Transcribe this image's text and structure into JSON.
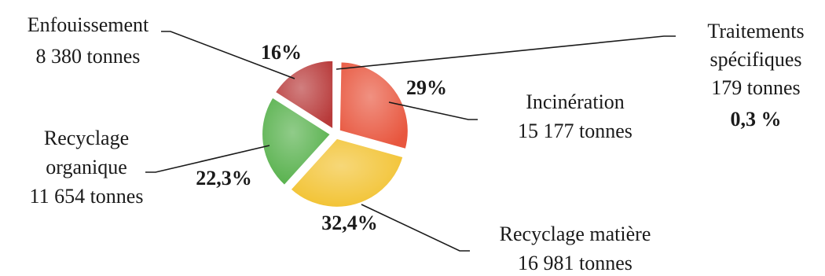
{
  "chart_data": {
    "type": "pie",
    "title": "",
    "slices": [
      {
        "label": "Traitements spécifiques",
        "value_text": "179 tonnes",
        "tonnes": 179,
        "percent": 0.3,
        "percent_text": "0,3 %",
        "color": "#c9c9c9"
      },
      {
        "label": "Incinération",
        "value_text": "15 177 tonnes",
        "tonnes": 15177,
        "percent": 29,
        "percent_text": "29%",
        "color": "#e8563e"
      },
      {
        "label": "Recyclage matière",
        "value_text": "16 981 tonnes",
        "tonnes": 16981,
        "percent": 32.4,
        "percent_text": "32,4%",
        "color": "#f2c230"
      },
      {
        "label": "Recyclage organique",
        "value_text": "11 654 tonnes",
        "tonnes": 11654,
        "percent": 22.3,
        "percent_text": "22,3%",
        "color": "#55b04a"
      },
      {
        "label": "Enfouissement",
        "value_text": "8 380 tonnes",
        "tonnes": 8380,
        "percent": 16,
        "percent_text": "16%",
        "color": "#b83a3a"
      }
    ]
  }
}
